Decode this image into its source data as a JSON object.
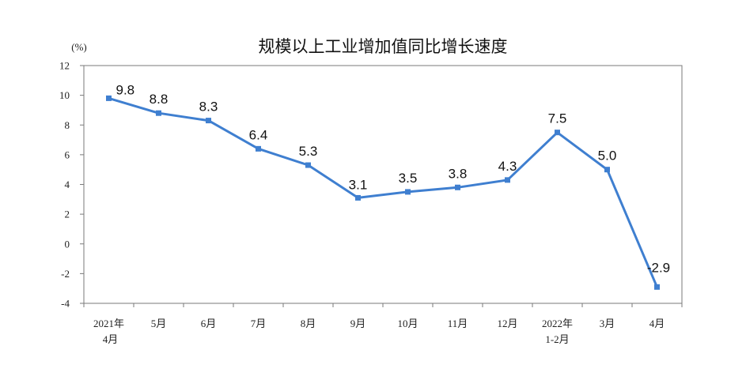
{
  "chart_data": {
    "type": "line",
    "title": "规模以上工业增加值同比增长速度",
    "unit": "(%)",
    "categories": [
      [
        "2021年",
        "4月"
      ],
      [
        "5月"
      ],
      [
        "6月"
      ],
      [
        "7月"
      ],
      [
        "8月"
      ],
      [
        "9月"
      ],
      [
        "10月"
      ],
      [
        "11月"
      ],
      [
        "12月"
      ],
      [
        "2022年",
        "1-2月"
      ],
      [
        "3月"
      ],
      [
        "4月"
      ]
    ],
    "values": [
      9.8,
      8.8,
      8.3,
      6.4,
      5.3,
      3.1,
      3.5,
      3.8,
      4.3,
      7.5,
      5.0,
      -2.9
    ],
    "labels": [
      "9.8",
      "8.8",
      "8.3",
      "6.4",
      "5.3",
      "3.1",
      "3.5",
      "3.8",
      "4.3",
      "7.5",
      "5.0",
      "-2.9"
    ],
    "ylim": [
      -4,
      12
    ],
    "yticks": [
      -4,
      -2,
      0,
      2,
      4,
      6,
      8,
      10,
      12
    ],
    "line_color": "#3f7fd0",
    "grid": false
  }
}
